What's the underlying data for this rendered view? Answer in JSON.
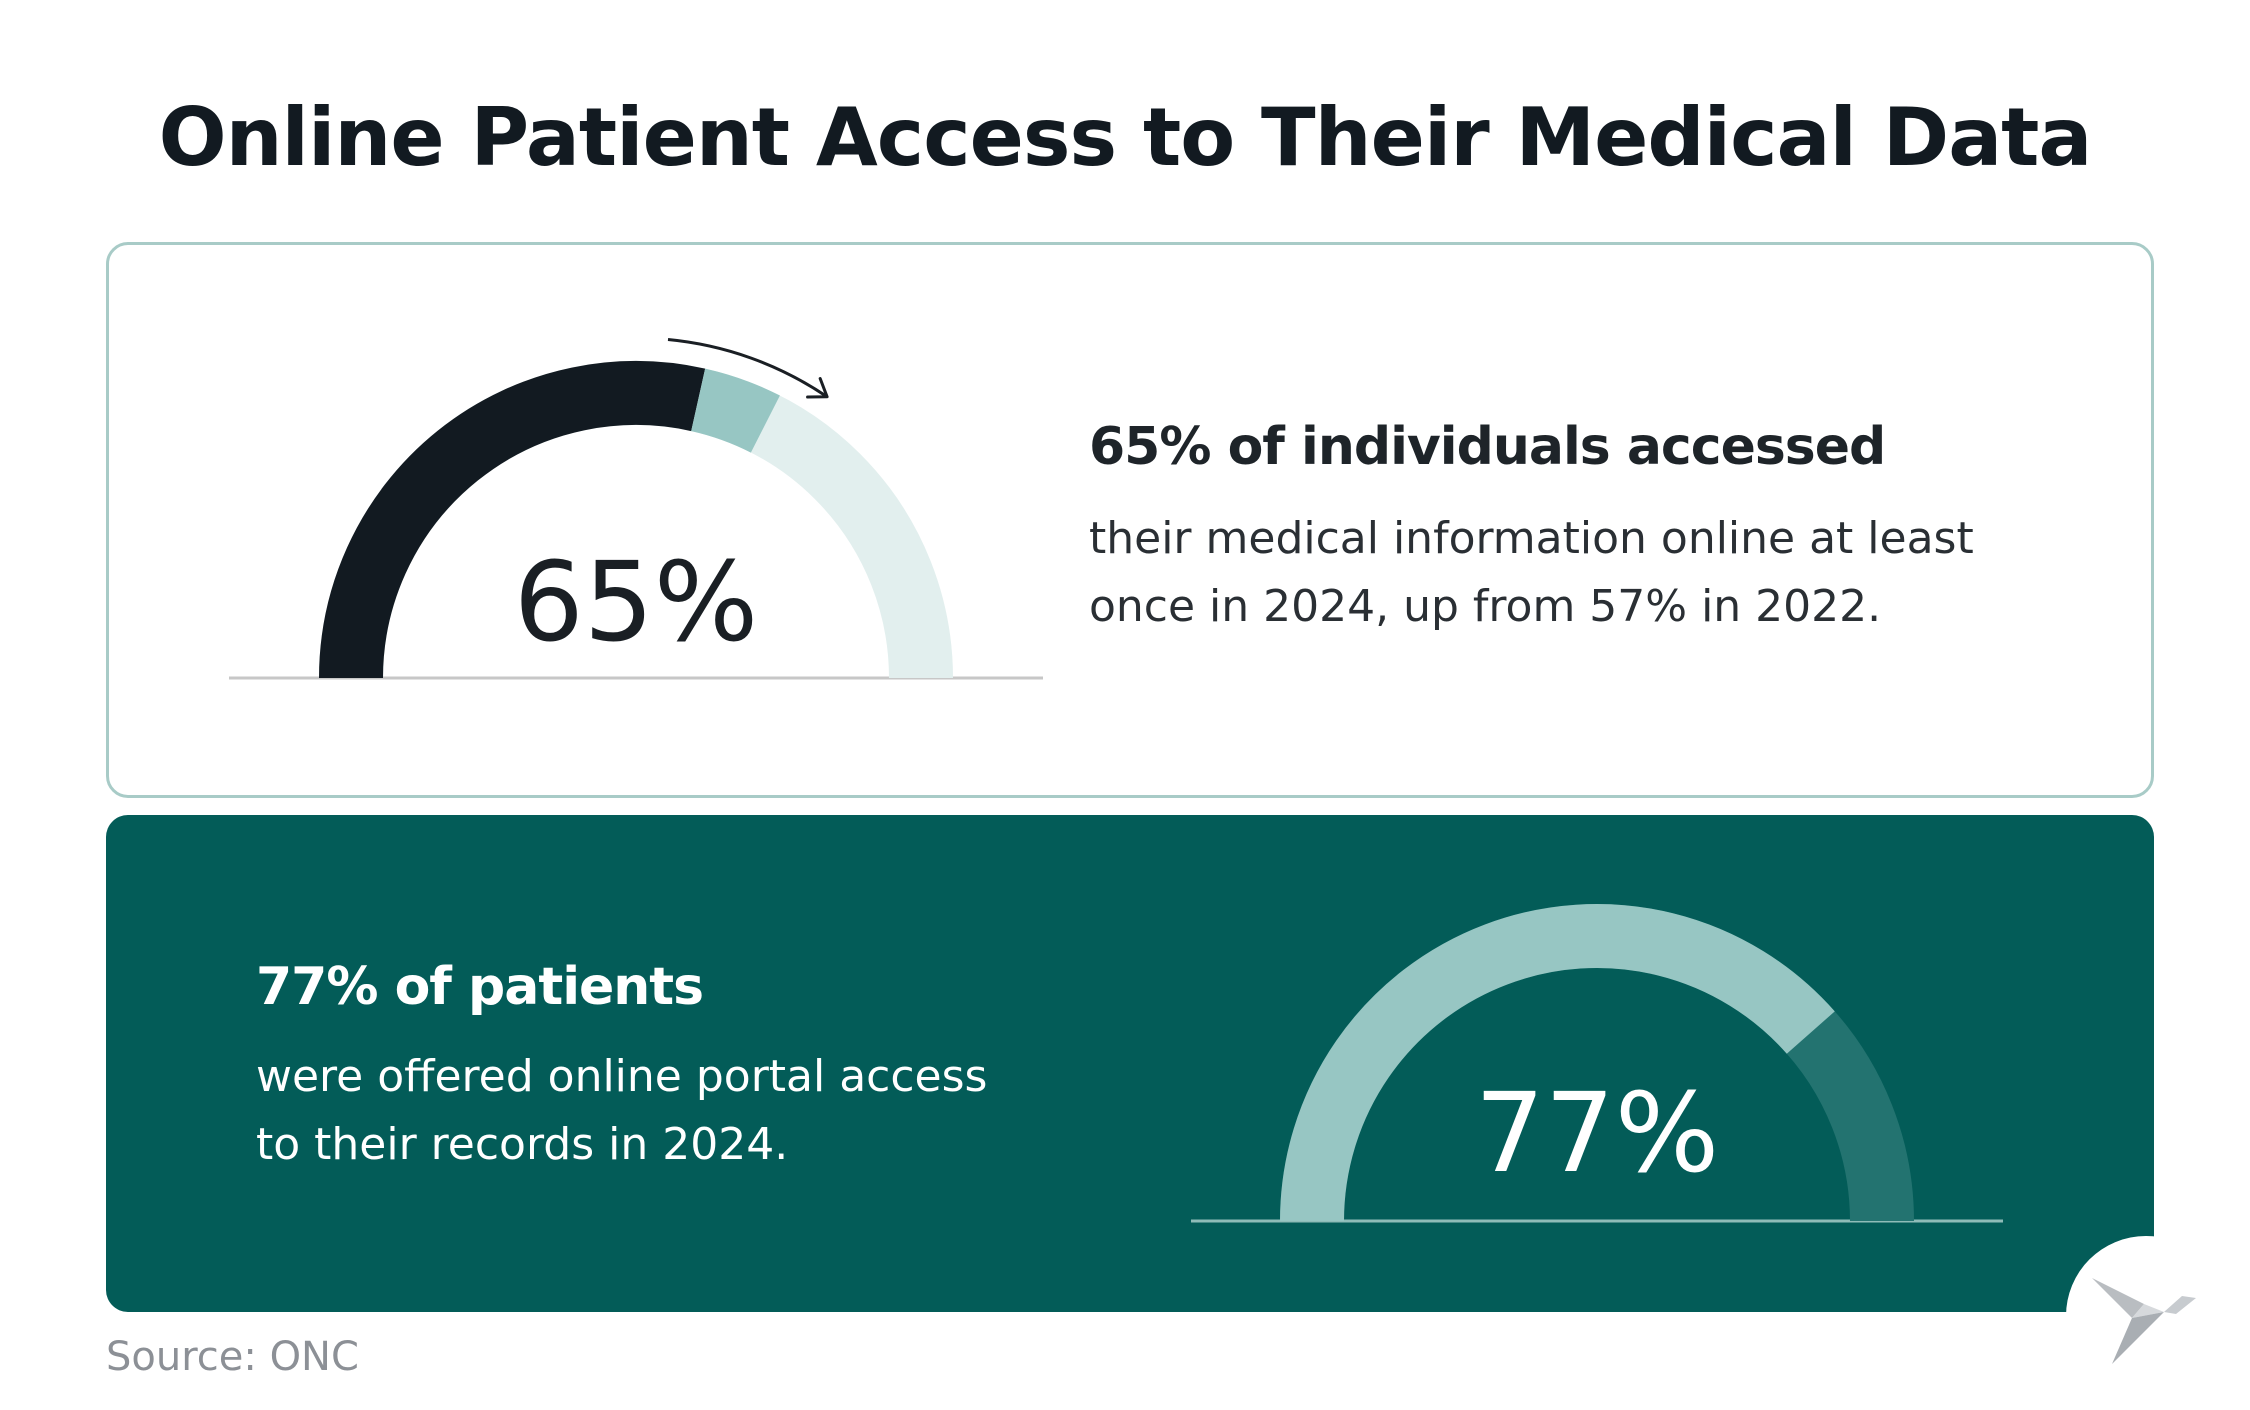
{
  "title": "Online Patient Access to Their Medical Data",
  "cards": {
    "top": {
      "percent_label": "65%",
      "heading": "65% of individuals accessed",
      "body_line_1": "their medical information online at least",
      "body_line_2": "once in 2024, up from 57% in 2022."
    },
    "bottom": {
      "percent_label": "77%",
      "heading": "77% of patients",
      "body_line_1": "were offered online portal access",
      "body_line_2": "to their records in 2024."
    }
  },
  "source": "Source: ONC",
  "colors": {
    "dark": "#121a21",
    "teal_light": "#97c6c3",
    "track_light": "#e2efee",
    "card_dark_bg": "#035c58",
    "track_dark": "#237370"
  },
  "icons": {
    "trend_arrow": "curved-arrow-icon",
    "logo": "bird-logo-icon"
  },
  "chart_data": [
    {
      "type": "gauge",
      "title": "65% of individuals accessed",
      "value": 65,
      "previous_value": 57,
      "min": 0,
      "max": 100,
      "label": "65%",
      "series": [
        {
          "name": "2022",
          "value": 57
        },
        {
          "name": "2024 increase",
          "value": 8
        }
      ]
    },
    {
      "type": "gauge",
      "title": "77% of patients",
      "value": 77,
      "min": 0,
      "max": 100,
      "label": "77%"
    }
  ]
}
